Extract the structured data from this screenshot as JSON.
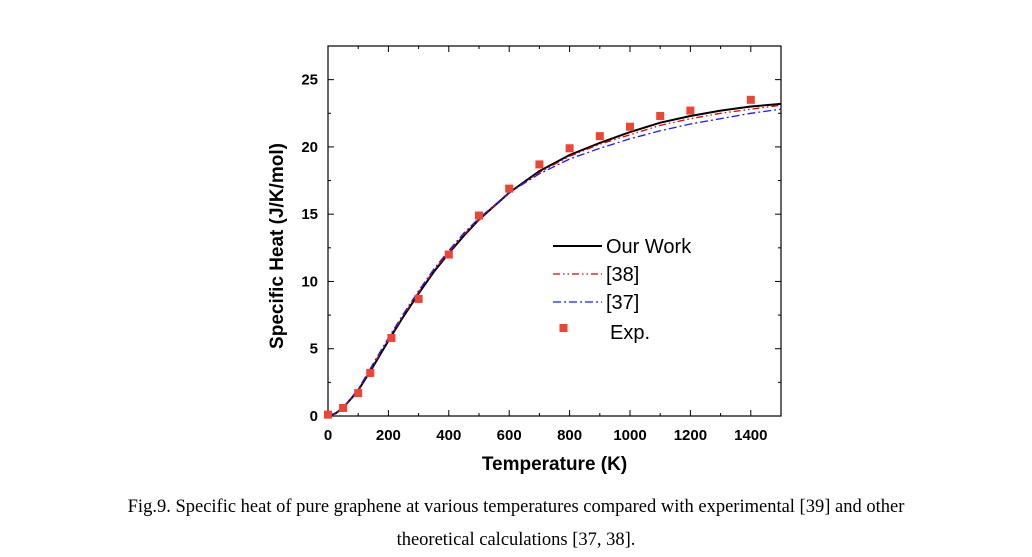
{
  "chart_data": {
    "type": "line",
    "xlabel": "Temperature (K)",
    "ylabel": "Specific Heat (J/K/mol)",
    "xlim": [
      0,
      1500
    ],
    "ylim": [
      0,
      27.5
    ],
    "xticks": [
      0,
      200,
      400,
      600,
      800,
      1000,
      1200,
      1400
    ],
    "yticks": [
      0,
      5,
      10,
      15,
      20,
      25
    ],
    "grid": false,
    "legend_position": "right-center",
    "series": [
      {
        "name": "Our Work",
        "style": "solid",
        "color": "#000000",
        "x": [
          0,
          25,
          50,
          100,
          150,
          200,
          250,
          300,
          350,
          400,
          450,
          500,
          600,
          700,
          800,
          900,
          1000,
          1100,
          1200,
          1300,
          1400,
          1500
        ],
        "y": [
          0,
          0.2,
          0.6,
          1.9,
          3.7,
          5.6,
          7.4,
          9.1,
          10.7,
          12.1,
          13.4,
          14.6,
          16.6,
          18.2,
          19.4,
          20.3,
          21.1,
          21.8,
          22.3,
          22.7,
          23.0,
          23.2
        ]
      },
      {
        "name": "[38]",
        "style": "dash-dot-dot",
        "color": "#e00000",
        "x": [
          0,
          25,
          50,
          100,
          150,
          200,
          250,
          300,
          350,
          400,
          450,
          500,
          600,
          700,
          800,
          900,
          1000,
          1100,
          1200,
          1300,
          1400,
          1500
        ],
        "y": [
          0,
          0.2,
          0.6,
          1.9,
          3.8,
          5.7,
          7.5,
          9.2,
          10.8,
          12.2,
          13.5,
          14.6,
          16.6,
          18.1,
          19.3,
          20.2,
          20.9,
          21.6,
          22.1,
          22.5,
          22.8,
          23.1
        ]
      },
      {
        "name": "[37]",
        "style": "dash-dot",
        "color": "#1a1aff",
        "x": [
          0,
          25,
          50,
          100,
          150,
          200,
          250,
          300,
          350,
          400,
          450,
          500,
          600,
          700,
          800,
          900,
          1000,
          1100,
          1200,
          1300,
          1400,
          1500
        ],
        "y": [
          0,
          0.2,
          0.6,
          2.0,
          3.9,
          5.8,
          7.6,
          9.3,
          10.9,
          12.3,
          13.6,
          14.7,
          16.6,
          18.0,
          19.1,
          19.9,
          20.6,
          21.2,
          21.7,
          22.1,
          22.5,
          22.8
        ]
      },
      {
        "name": "Exp.",
        "style": "marker",
        "color": "#ee4433",
        "x": [
          0,
          50,
          100,
          140,
          210,
          300,
          400,
          500,
          600,
          700,
          800,
          900,
          1000,
          1100,
          1200,
          1400
        ],
        "y": [
          0.1,
          0.6,
          1.7,
          3.2,
          5.8,
          8.7,
          12.0,
          14.9,
          16.9,
          18.7,
          19.9,
          20.8,
          21.5,
          22.3,
          22.7,
          23.5
        ]
      }
    ]
  },
  "caption": {
    "line1": "Fig.9. Specific heat of pure graphene at various temperatures compared with experimental [39] and other",
    "line2": "theoretical calculations [37, 38]."
  }
}
